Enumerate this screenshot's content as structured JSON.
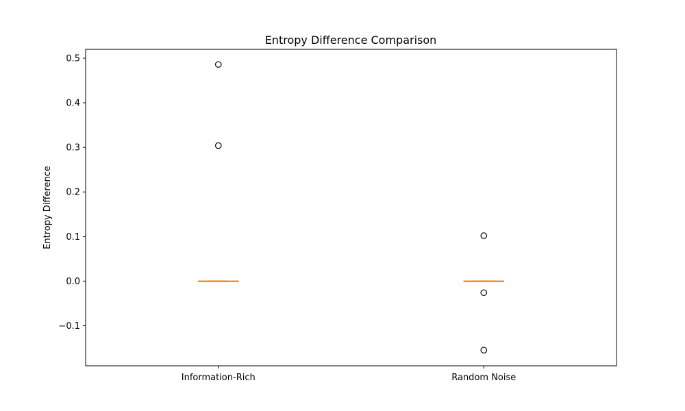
{
  "chart_data": {
    "type": "box",
    "title": "Entropy Difference Comparison",
    "xlabel": "",
    "ylabel": "Entropy Difference",
    "ylim": [
      -0.19,
      0.52
    ],
    "yticks": [
      -0.1,
      0.0,
      0.1,
      0.2,
      0.3,
      0.4,
      0.5
    ],
    "ytick_labels": [
      "−0.1",
      "0.0",
      "0.1",
      "0.2",
      "0.3",
      "0.4",
      "0.5"
    ],
    "grid": false,
    "categories": [
      "Information-Rich",
      "Random Noise"
    ],
    "boxes": [
      {
        "category": "Information-Rich",
        "q1": 0.0,
        "median": 0.0,
        "q3": 0.0,
        "whisker_low": 0.0,
        "whisker_high": 0.0,
        "outliers": [
          0.486,
          0.304
        ]
      },
      {
        "category": "Random Noise",
        "q1": 0.0,
        "median": 0.0,
        "q3": 0.0,
        "whisker_low": 0.0,
        "whisker_high": 0.0,
        "outliers": [
          0.102,
          -0.026,
          -0.155
        ]
      }
    ],
    "colors": {
      "median": "#ff7f0e",
      "box": "#000000",
      "outlier": "#000000"
    }
  }
}
